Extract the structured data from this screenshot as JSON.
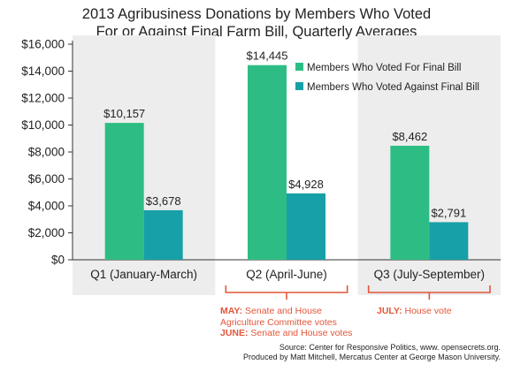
{
  "chart_data": {
    "type": "bar",
    "title_lines": [
      "2013 Agribusiness Donations by Members Who Voted",
      "For or Against Final Farm Bill, Quarterly Averages"
    ],
    "categories": [
      "Q1 (January-March)",
      "Q2 (April-June)",
      "Q3 (July-September)"
    ],
    "series": [
      {
        "name": "Members Who Voted For Final Bill",
        "color": "#2dbd84",
        "values": [
          10157,
          14445,
          8462
        ],
        "labels": [
          "$10,157",
          "$14,445",
          "$8,462"
        ]
      },
      {
        "name": "Members Who Voted Against Final Bill",
        "color": "#17a0a8",
        "values": [
          3678,
          4928,
          2791
        ],
        "labels": [
          "$3,678",
          "$4,928",
          "$2,791"
        ]
      }
    ],
    "ylim": [
      0,
      16000
    ],
    "yticks": [
      0,
      2000,
      4000,
      6000,
      8000,
      10000,
      12000,
      14000,
      16000
    ],
    "ytick_labels": [
      "$0",
      "$2,000",
      "$4,000",
      "$6,000",
      "$8,000",
      "$10,000",
      "$12,000",
      "$14,000",
      "$16,000"
    ],
    "xlabel": "",
    "ylabel": "",
    "legend_position": "top-right",
    "grid": false,
    "shaded_panels": "alternating light gray background panels behind Q1 and Q3",
    "annotations": {
      "q2": [
        {
          "bold": "MAY:",
          "text": " Senate and House"
        },
        {
          "bold": "",
          "text": "Agriculture Committee votes"
        },
        {
          "bold": "JUNE:",
          "text": " Senate and House votes"
        }
      ],
      "q3": [
        {
          "bold": "JULY:",
          "text": " House vote"
        }
      ]
    },
    "annotation_color": "#e2563a"
  },
  "source": {
    "line1": "Source: Center for Responsive Politics, www. opensecrets.org.",
    "line2": "Produced by Matt Mitchell, Mercatus Center at George Mason University."
  }
}
